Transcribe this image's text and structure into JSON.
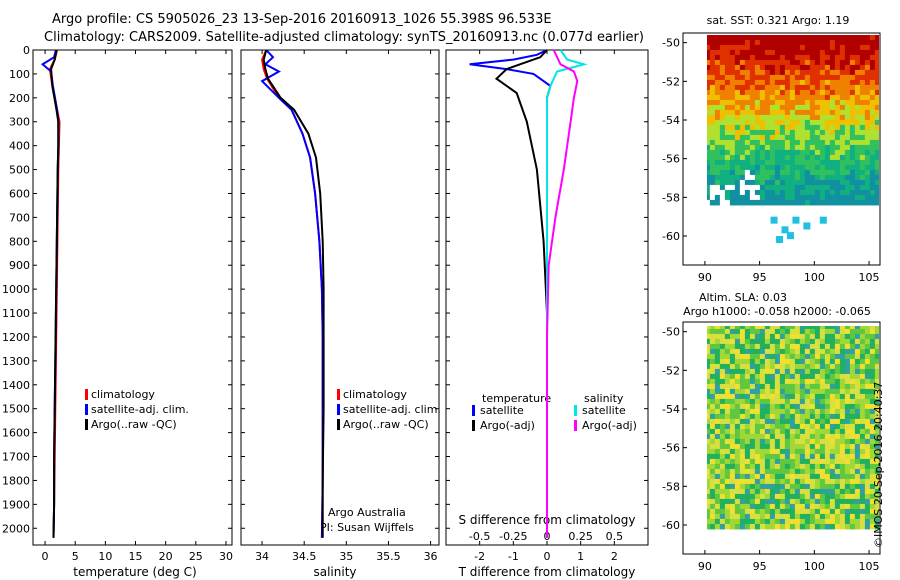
{
  "titles": {
    "line1": "Argo profile: CS 5905026_23 13-Sep-2016 20160913_1026 55.398S 96.533E",
    "line2": "Climatology: CARS2009. Satellite-adjusted climatology: synTS_20160913.nc (0.077d earlier)"
  },
  "timestamp": "©IMOS 20-Sep-2016 20:40:37",
  "colors": {
    "climatology": "#ff0000",
    "satellite": "#0000ff",
    "argo": "#000000",
    "s_satellite": "#00e5e5",
    "s_argo": "#ff00ff"
  },
  "chart_data": [
    {
      "type": "line",
      "panel": "temperature",
      "xlabel": "temperature (deg C)",
      "ylabel": "",
      "xlim": [
        -2,
        31
      ],
      "ylim": [
        2070,
        0
      ],
      "xticks": [
        0,
        5,
        10,
        15,
        20,
        25,
        30
      ],
      "yticks": [
        0,
        100,
        200,
        300,
        400,
        500,
        600,
        700,
        800,
        900,
        1000,
        1100,
        1200,
        1300,
        1400,
        1500,
        1600,
        1700,
        1800,
        1900,
        2000
      ],
      "legend": [
        "climatology",
        "satellite-adj. clim.",
        "Argo(..raw -QC)"
      ],
      "series": [
        {
          "name": "climatology",
          "color": "#ff0000",
          "points": [
            [
              2.0,
              0
            ],
            [
              1.6,
              40
            ],
            [
              0.8,
              80
            ],
            [
              1.2,
              150
            ],
            [
              2.0,
              250
            ],
            [
              2.4,
              300
            ],
            [
              2.3,
              400
            ],
            [
              2.2,
              500
            ],
            [
              2.1,
              700
            ],
            [
              2.0,
              900
            ],
            [
              1.9,
              1100
            ],
            [
              1.8,
              1300
            ],
            [
              1.7,
              1500
            ],
            [
              1.6,
              1700
            ],
            [
              1.5,
              1900
            ],
            [
              1.4,
              2040
            ]
          ]
        },
        {
          "name": "satellite-adj. clim.",
          "color": "#0000ff",
          "points": [
            [
              1.8,
              0
            ],
            [
              1.5,
              30
            ],
            [
              -0.4,
              60
            ],
            [
              1.0,
              90
            ],
            [
              1.3,
              150
            ],
            [
              2.0,
              250
            ],
            [
              2.2,
              300
            ],
            [
              2.2,
              400
            ],
            [
              2.1,
              500
            ],
            [
              2.0,
              700
            ],
            [
              1.9,
              900
            ],
            [
              1.8,
              1100
            ],
            [
              1.7,
              1300
            ],
            [
              1.6,
              1500
            ],
            [
              1.5,
              1700
            ],
            [
              1.5,
              1900
            ],
            [
              1.4,
              2040
            ]
          ]
        },
        {
          "name": "Argo(..raw -QC)",
          "color": "#000000",
          "points": [
            [
              1.9,
              0
            ],
            [
              1.6,
              40
            ],
            [
              1.0,
              80
            ],
            [
              1.2,
              150
            ],
            [
              1.9,
              250
            ],
            [
              2.2,
              300
            ],
            [
              2.2,
              400
            ],
            [
              2.1,
              500
            ],
            [
              2.0,
              700
            ],
            [
              1.9,
              900
            ],
            [
              1.8,
              1100
            ],
            [
              1.7,
              1300
            ],
            [
              1.6,
              1500
            ],
            [
              1.5,
              1700
            ],
            [
              1.5,
              1900
            ],
            [
              1.4,
              2040
            ]
          ]
        }
      ]
    },
    {
      "type": "line",
      "panel": "salinity",
      "xlabel": "salinity",
      "ylabel": "",
      "xlim": [
        33.75,
        36.1
      ],
      "ylim": [
        2070,
        0
      ],
      "xticks": [
        34,
        34.5,
        35,
        35.5,
        36
      ],
      "legend": [
        "climatology",
        "satellite-adj. clim.",
        "Argo(..raw -QC)"
      ],
      "annotation": [
        "Argo Australia",
        "PI: Susan Wijffels"
      ],
      "series": [
        {
          "name": "climatology",
          "color": "#ff0000",
          "points": [
            [
              34.05,
              0
            ],
            [
              34.0,
              40
            ],
            [
              34.02,
              80
            ],
            [
              34.06,
              120
            ],
            [
              34.2,
              200
            ],
            [
              34.35,
              250
            ],
            [
              34.48,
              350
            ],
            [
              34.57,
              450
            ],
            [
              34.63,
              600
            ],
            [
              34.68,
              800
            ],
            [
              34.71,
              1000
            ],
            [
              34.72,
              1200
            ],
            [
              34.72,
              1500
            ],
            [
              34.72,
              1800
            ],
            [
              34.71,
              2040
            ]
          ]
        },
        {
          "name": "satellite-adj. clim.",
          "color": "#0000ff",
          "points": [
            [
              34.05,
              0
            ],
            [
              34.13,
              30
            ],
            [
              34.04,
              60
            ],
            [
              34.2,
              90
            ],
            [
              34.0,
              130
            ],
            [
              34.2,
              200
            ],
            [
              34.35,
              250
            ],
            [
              34.48,
              350
            ],
            [
              34.57,
              450
            ],
            [
              34.63,
              600
            ],
            [
              34.68,
              800
            ],
            [
              34.71,
              1000
            ],
            [
              34.72,
              1200
            ],
            [
              34.72,
              1500
            ],
            [
              34.72,
              1800
            ],
            [
              34.71,
              2040
            ]
          ]
        },
        {
          "name": "Argo(..raw -QC)",
          "color": "#000000",
          "points": [
            [
              34.05,
              0
            ],
            [
              34.02,
              40
            ],
            [
              34.04,
              80
            ],
            [
              34.07,
              120
            ],
            [
              34.22,
              200
            ],
            [
              34.38,
              250
            ],
            [
              34.55,
              350
            ],
            [
              34.64,
              450
            ],
            [
              34.69,
              600
            ],
            [
              34.72,
              800
            ],
            [
              34.73,
              1000
            ],
            [
              34.73,
              1200
            ],
            [
              34.73,
              1500
            ],
            [
              34.72,
              1800
            ],
            [
              34.72,
              2040
            ]
          ]
        }
      ]
    },
    {
      "type": "line",
      "panel": "difference",
      "xlabel": "T difference from climatology",
      "xlabel_top": "S difference from climatology",
      "ylabel": "",
      "xlim": [
        -3,
        3
      ],
      "ylim": [
        2070,
        0
      ],
      "xticks": [
        -2,
        -1,
        0,
        1,
        2
      ],
      "xticks_s": [
        "-0.5",
        "-0.25",
        "0",
        "0.25",
        "0.5"
      ],
      "legend_titles": [
        "temperature",
        "salinity"
      ],
      "legend": [
        "satellite",
        "Argo(-adj)",
        "satellite",
        "Argo(-adj)"
      ],
      "series": [
        {
          "name": "satellite",
          "color": "#0000ff",
          "points": [
            [
              0,
              0
            ],
            [
              -0.3,
              20
            ],
            [
              -1.0,
              40
            ],
            [
              -2.3,
              60
            ],
            [
              -1.2,
              80
            ],
            [
              -0.4,
              100
            ],
            [
              0.1,
              150
            ],
            [
              0,
              200
            ],
            [
              0,
              400
            ],
            [
              0,
              800
            ],
            [
              0,
              1200
            ],
            [
              0,
              1600
            ],
            [
              0,
              2040
            ]
          ]
        },
        {
          "name": "Argo(-adj)",
          "color": "#000000",
          "points": [
            [
              0,
              0
            ],
            [
              -0.2,
              30
            ],
            [
              -1.2,
              80
            ],
            [
              -1.5,
              120
            ],
            [
              -0.9,
              180
            ],
            [
              -0.6,
              300
            ],
            [
              -0.3,
              500
            ],
            [
              -0.1,
              800
            ],
            [
              0,
              1100
            ],
            [
              0,
              1500
            ],
            [
              0,
              2040
            ]
          ]
        },
        {
          "name": "satellite",
          "color": "#00e5e5",
          "points": [
            [
              0.4,
              0
            ],
            [
              0.6,
              40
            ],
            [
              1.1,
              60
            ],
            [
              0.3,
              90
            ],
            [
              0.1,
              150
            ],
            [
              0,
              200
            ],
            [
              0,
              400
            ],
            [
              0,
              800
            ],
            [
              0,
              1200
            ],
            [
              0,
              2040
            ]
          ]
        },
        {
          "name": "Argo(-adj)",
          "color": "#ff00ff",
          "points": [
            [
              0.2,
              0
            ],
            [
              0.4,
              60
            ],
            [
              0.8,
              90
            ],
            [
              0.9,
              130
            ],
            [
              0.8,
              200
            ],
            [
              0.7,
              300
            ],
            [
              0.5,
              500
            ],
            [
              0.25,
              700
            ],
            [
              0.05,
              900
            ],
            [
              0,
              1200
            ],
            [
              0,
              2040
            ]
          ]
        }
      ]
    },
    {
      "type": "heatmap",
      "panel": "sst-map",
      "title": "sat. SST: 0.321 Argo: 1.19",
      "xticks": [
        90,
        95,
        100,
        105
      ],
      "yticks": [
        -50,
        -52,
        -54,
        -56,
        -58,
        -60
      ],
      "xlim": [
        88,
        106
      ],
      "ylim": [
        -61.5,
        -49.5
      ]
    },
    {
      "type": "heatmap",
      "panel": "sla-map",
      "title_lines": [
        "Altim. SLA: 0.03",
        "Argo h1000: -0.058 h2000: -0.065"
      ],
      "xticks": [
        90,
        95,
        100,
        105
      ],
      "yticks": [
        -50,
        -52,
        -54,
        -56,
        -58,
        -60
      ],
      "xlim": [
        88,
        106
      ],
      "ylim": [
        -61.5,
        -49.5
      ]
    }
  ]
}
